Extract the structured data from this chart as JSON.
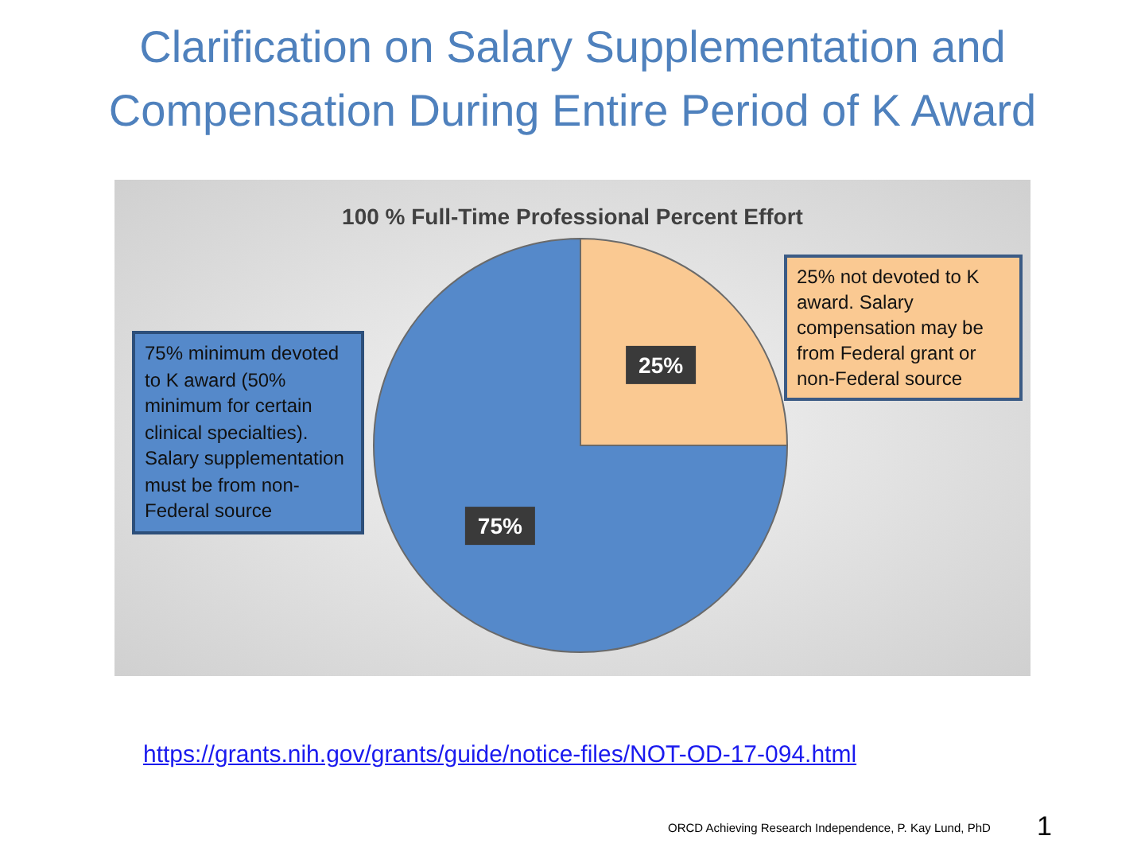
{
  "chart_data": {
    "type": "pie",
    "title": "Clarification on Salary Supplementation and Compensation During Entire Period of K Award",
    "subtitle": "100 % Full-Time Professional Percent Effort",
    "categories": [
      null,
      null
    ],
    "values": [
      25,
      75
    ],
    "colors": [
      "#fac992",
      "#5589ca"
    ],
    "value_labels": [
      "25%",
      "75%"
    ],
    "annotations": [
      "25% not devoted to K award. Salary compensation may be from Federal grant or non-Federal source",
      "75% minimum devoted to K award (50% minimum for certain clinical specialties). Salary supplementation must be from non-Federal source",
      "https://grants.nih.gov/grants/guide/notice-files/NOT-OD-17-094.html",
      "ORCD Achieving Research Independence, P. Kay Lund, PhD",
      "1"
    ],
    "legend": false
  }
}
